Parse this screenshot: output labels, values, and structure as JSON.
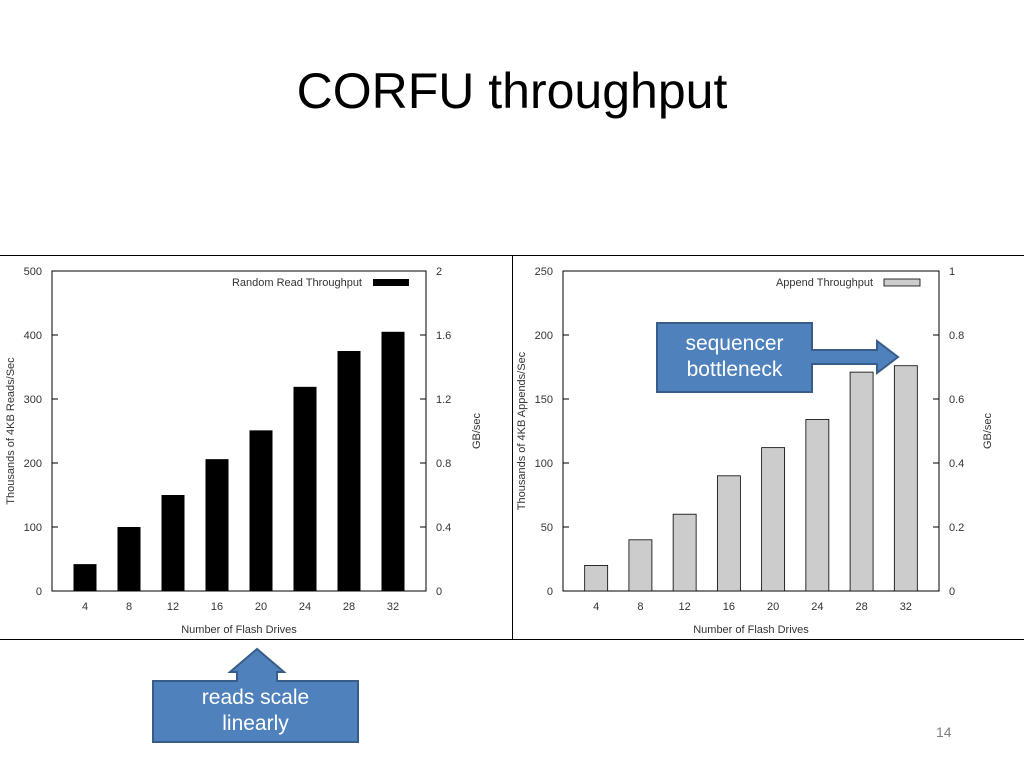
{
  "slide": {
    "title": "CORFU throughput",
    "page_number": "14"
  },
  "callouts": {
    "sequencer": [
      "sequencer",
      "bottleneck"
    ],
    "reads": [
      "reads scale",
      "linearly"
    ]
  },
  "colors": {
    "read_bars": "#000000",
    "append_bars": "#cccccc",
    "callout_fill": "#4f81bd",
    "callout_border": "#385d8a"
  },
  "chart_data": [
    {
      "type": "bar",
      "categories": [
        "4",
        "8",
        "12",
        "16",
        "20",
        "24",
        "28",
        "32"
      ],
      "series": [
        {
          "name": "Random Read Throughput",
          "values": [
            42,
            100,
            150,
            206,
            251,
            319,
            375,
            405
          ],
          "color": "#000000"
        }
      ],
      "xlabel": "Number of Flash Drives",
      "ylabel": "Thousands of 4KB Reads/Sec",
      "ylim": [
        0,
        500
      ],
      "yticks": [
        "0",
        "100",
        "200",
        "300",
        "400",
        "500"
      ],
      "y2label": "GB/sec",
      "y2lim": [
        0,
        2
      ],
      "y2ticks": [
        "0",
        "0.4",
        "0.8",
        "1.2",
        "1.6",
        "2"
      ],
      "legend": "top-right",
      "grid": false
    },
    {
      "type": "bar",
      "categories": [
        "4",
        "8",
        "12",
        "16",
        "20",
        "24",
        "28",
        "32"
      ],
      "series": [
        {
          "name": "Append Throughput",
          "values": [
            20,
            40,
            60,
            90,
            112,
            134,
            171,
            176
          ],
          "color": "#cccccc"
        }
      ],
      "xlabel": "Number of Flash Drives",
      "ylabel": "Thousands of 4KB Appends/Sec",
      "ylim": [
        0,
        250
      ],
      "yticks": [
        "0",
        "50",
        "100",
        "150",
        "200",
        "250"
      ],
      "y2label": "GB/sec",
      "y2lim": [
        0,
        1
      ],
      "y2ticks": [
        "0",
        "0.2",
        "0.4",
        "0.6",
        "0.8",
        "1"
      ],
      "legend": "top-right",
      "grid": false
    }
  ]
}
